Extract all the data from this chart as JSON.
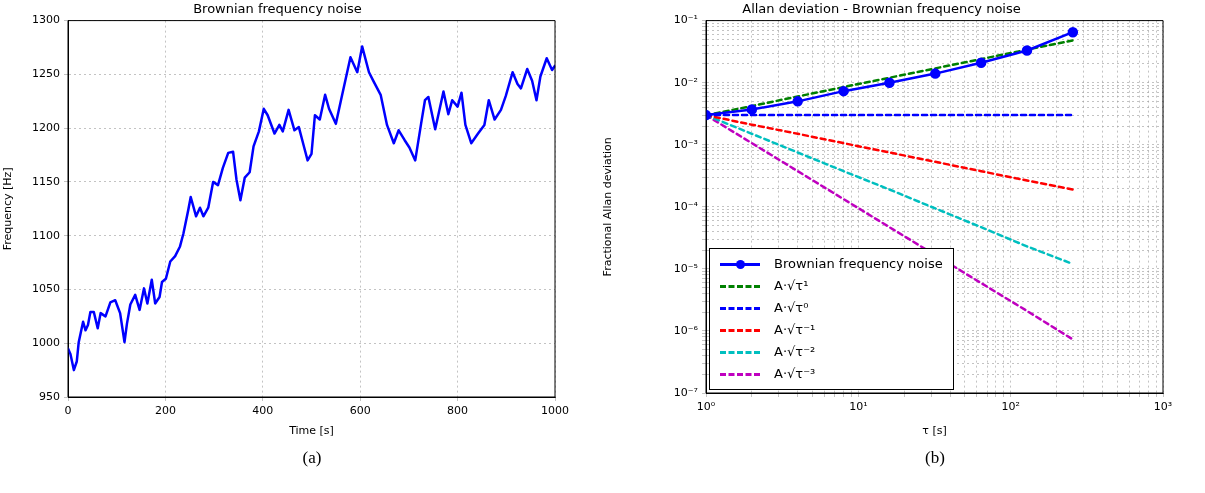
{
  "chart_data": [
    {
      "type": "line",
      "title": "Brownian frequency noise",
      "xlabel": "Time [s]",
      "ylabel": "Frequency [Hz]",
      "x": [
        0,
        5,
        12,
        18,
        22,
        31,
        36,
        41,
        46,
        53,
        61,
        67,
        77,
        87,
        97,
        107,
        116,
        121,
        128,
        138,
        147,
        156,
        163,
        172,
        179,
        188,
        193,
        201,
        210,
        220,
        230,
        237,
        247,
        252,
        263,
        271,
        278,
        288,
        298,
        308,
        318,
        329,
        339,
        346,
        354,
        363,
        373,
        381,
        392,
        402,
        410,
        424,
        434,
        441,
        453,
        465,
        474,
        485,
        492,
        500,
        507,
        517,
        528,
        536,
        550,
        563,
        580,
        594,
        604,
        618,
        628,
        642,
        655,
        669,
        679,
        691,
        701,
        713,
        725,
        733,
        740,
        754,
        771,
        781,
        789,
        800,
        808,
        816,
        828,
        842,
        855,
        864,
        876,
        889,
        899,
        913,
        923,
        930,
        943,
        953,
        962,
        970,
        983,
        994,
        1000
      ],
      "series": [
        {
          "color": "#0000ff",
          "values": [
            995,
            990,
            975,
            983,
            1001,
            1020,
            1012,
            1017,
            1029,
            1029,
            1014,
            1028,
            1025,
            1038,
            1040,
            1028,
            1001,
            1018,
            1036,
            1045,
            1031,
            1051,
            1037,
            1059,
            1037,
            1043,
            1057,
            1060,
            1076,
            1081,
            1090,
            1102,
            1124,
            1136,
            1118,
            1126,
            1118,
            1126,
            1150,
            1147,
            1163,
            1177,
            1178,
            1152,
            1133,
            1154,
            1159,
            1183,
            1197,
            1218,
            1212,
            1195,
            1203,
            1197,
            1217,
            1198,
            1201,
            1182,
            1170,
            1176,
            1212,
            1208,
            1231,
            1218,
            1204,
            1231,
            1266,
            1252,
            1276,
            1252,
            1243,
            1231,
            1203,
            1186,
            1198,
            1189,
            1182,
            1170,
            1204,
            1226,
            1229,
            1199,
            1234,
            1213,
            1226,
            1220,
            1233,
            1203,
            1186,
            1195,
            1203,
            1226,
            1208,
            1217,
            1230,
            1252,
            1241,
            1237,
            1255,
            1244,
            1226,
            1248,
            1265,
            1254,
            1258
          ]
        }
      ],
      "xlim": [
        0,
        1000
      ],
      "xticks": [
        0,
        200,
        400,
        600,
        800,
        1000
      ],
      "ylim": [
        950,
        1300
      ],
      "yticks": [
        950,
        1000,
        1050,
        1100,
        1150,
        1200,
        1250,
        1300
      ],
      "grid": true,
      "marker": "none",
      "line_style": "solid",
      "annotations": [
        "(a)"
      ]
    },
    {
      "type": "line",
      "title": "Allan deviation - Brownian frequency noise",
      "xlabel": "τ [s]",
      "ylabel": "Fractional Allan deviation",
      "log": "xy",
      "legend": "bottom left",
      "x": [
        1,
        2,
        4,
        8,
        16,
        32,
        64,
        128,
        256
      ],
      "series": [
        {
          "name": "Brownian frequency noise",
          "color": "#0000ff",
          "marker": "circle",
          "line_style": "solid",
          "values": [
            0.003,
            0.0037,
            0.005,
            0.0073,
            0.01,
            0.014,
            0.021,
            0.033,
            0.065
          ]
        },
        {
          "name": "A·√τ¹",
          "color": "#008000",
          "marker": "none",
          "line_style": "dashed",
          "values": [
            0.003,
            0.0042,
            0.006,
            0.0085,
            0.012,
            0.017,
            0.024,
            0.034,
            0.048
          ]
        },
        {
          "name": "A·√τ⁰",
          "color": "#0000ff",
          "marker": "none",
          "line_style": "dashed",
          "values": [
            0.003,
            0.003,
            0.003,
            0.003,
            0.003,
            0.003,
            0.003,
            0.003,
            0.003
          ]
        },
        {
          "name": "A·√τ⁻¹",
          "color": "#ff0000",
          "marker": "none",
          "line_style": "dashed",
          "values": [
            0.003,
            0.0021,
            0.0015,
            0.00106,
            0.00075,
            0.00053,
            0.000375,
            0.000265,
            0.00019
          ]
        },
        {
          "name": "A·√τ⁻²",
          "color": "#00bfbf",
          "marker": "none",
          "line_style": "dashed",
          "values": [
            0.003,
            0.0015,
            0.00075,
            0.000375,
            0.00019,
            9.4e-05,
            4.7e-05,
            2.3e-05,
            1.2e-05
          ]
        },
        {
          "name": "A·√τ⁻³",
          "color": "#bf00bf",
          "marker": "none",
          "line_style": "dashed",
          "values": [
            0.003,
            0.00106,
            0.000375,
            0.000133,
            4.7e-05,
            null,
            5.9e-06,
            2.1e-06,
            7.3e-07
          ]
        }
      ],
      "xlim": [
        1,
        1000
      ],
      "xticks": [
        {
          "value": 1,
          "label": "10⁰"
        },
        {
          "value": 2,
          "label": null
        },
        {
          "value": 3,
          "label": null
        },
        {
          "value": 4,
          "label": null
        },
        {
          "value": 5,
          "label": null
        },
        {
          "value": 6,
          "label": null
        },
        {
          "value": 7,
          "label": null
        },
        {
          "value": 8,
          "label": null
        },
        {
          "value": 9,
          "label": null
        },
        {
          "value": 10,
          "label": "10¹"
        },
        {
          "value": 20,
          "label": null
        },
        {
          "value": 30,
          "label": null
        },
        {
          "value": 40,
          "label": null
        },
        {
          "value": 50,
          "label": null
        },
        {
          "value": 60,
          "label": null
        },
        {
          "value": 70,
          "label": null
        },
        {
          "value": 80,
          "label": null
        },
        {
          "value": 90,
          "label": null
        },
        {
          "value": 100,
          "label": "10²"
        },
        {
          "value": 200,
          "label": null
        },
        {
          "value": 300,
          "label": null
        },
        {
          "value": 400,
          "label": null
        },
        {
          "value": 500,
          "label": null
        },
        {
          "value": 600,
          "label": null
        },
        {
          "value": 700,
          "label": null
        },
        {
          "value": 800,
          "label": null
        },
        {
          "value": 900,
          "label": null
        },
        {
          "value": 1000,
          "label": "10³"
        }
      ],
      "ylim": [
        1e-07,
        0.1
      ],
      "yticks": [
        {
          "value": 1e-07,
          "label": "10⁻⁷"
        },
        {
          "value": 2e-07,
          "label": null
        },
        {
          "value": 3e-07,
          "label": null
        },
        {
          "value": 4e-07,
          "label": null
        },
        {
          "value": 5e-07,
          "label": null
        },
        {
          "value": 6e-07,
          "label": null
        },
        {
          "value": 7e-07,
          "label": null
        },
        {
          "value": 8e-07,
          "label": null
        },
        {
          "value": 9e-07,
          "label": null
        },
        {
          "value": 1e-06,
          "label": "10⁻⁶"
        },
        {
          "value": 2e-06,
          "label": null
        },
        {
          "value": 3e-06,
          "label": null
        },
        {
          "value": 4e-06,
          "label": null
        },
        {
          "value": 5e-06,
          "label": null
        },
        {
          "value": 6e-06,
          "label": null
        },
        {
          "value": 7e-06,
          "label": null
        },
        {
          "value": 8e-06,
          "label": null
        },
        {
          "value": 9e-06,
          "label": null
        },
        {
          "value": 1e-05,
          "label": "10⁻⁵"
        },
        {
          "value": 2e-05,
          "label": null
        },
        {
          "value": 3e-05,
          "label": null
        },
        {
          "value": 4e-05,
          "label": null
        },
        {
          "value": 5e-05,
          "label": null
        },
        {
          "value": 6e-05,
          "label": null
        },
        {
          "value": 7e-05,
          "label": null
        },
        {
          "value": 8e-05,
          "label": null
        },
        {
          "value": 9e-05,
          "label": null
        },
        {
          "value": 0.0001,
          "label": "10⁻⁴"
        },
        {
          "value": 0.0002,
          "label": null
        },
        {
          "value": 0.0003,
          "label": null
        },
        {
          "value": 0.0004,
          "label": null
        },
        {
          "value": 0.0005,
          "label": null
        },
        {
          "value": 0.0006,
          "label": null
        },
        {
          "value": 0.0007,
          "label": null
        },
        {
          "value": 0.0008,
          "label": null
        },
        {
          "value": 0.0009,
          "label": null
        },
        {
          "value": 0.001,
          "label": "10⁻³"
        },
        {
          "value": 0.002,
          "label": null
        },
        {
          "value": 0.003,
          "label": null
        },
        {
          "value": 0.004,
          "label": null
        },
        {
          "value": 0.005,
          "label": null
        },
        {
          "value": 0.006,
          "label": null
        },
        {
          "value": 0.007,
          "label": null
        },
        {
          "value": 0.008,
          "label": null
        },
        {
          "value": 0.009,
          "label": null
        },
        {
          "value": 0.01,
          "label": "10⁻²"
        },
        {
          "value": 0.02,
          "label": null
        },
        {
          "value": 0.03,
          "label": null
        },
        {
          "value": 0.04,
          "label": null
        },
        {
          "value": 0.05,
          "label": null
        },
        {
          "value": 0.06,
          "label": null
        },
        {
          "value": 0.07,
          "label": null
        },
        {
          "value": 0.08,
          "label": null
        },
        {
          "value": 0.09,
          "label": null
        },
        {
          "value": 0.1,
          "label": "10⁻¹"
        }
      ],
      "grid": true,
      "annotations": [
        "(b)"
      ]
    }
  ]
}
